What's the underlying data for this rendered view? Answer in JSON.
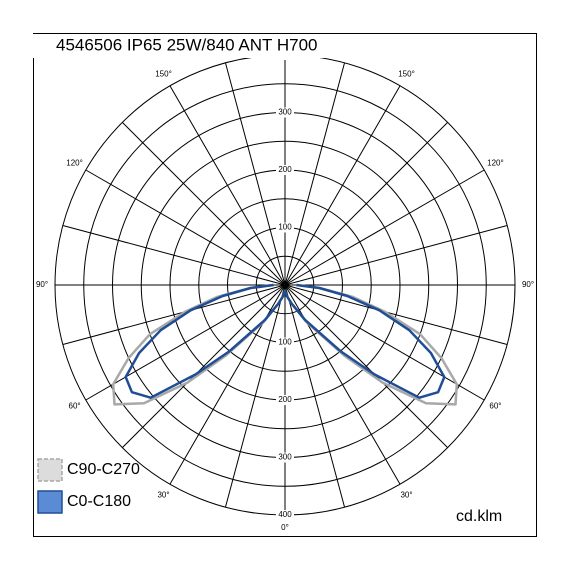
{
  "chart_data": {
    "type": "polar",
    "title": "4546506 IP65 25W/840 ANT H700",
    "unit": "cd.klm",
    "rlim": [
      0,
      400
    ],
    "rticks": [
      100,
      200,
      300,
      400
    ],
    "rgrid_step": 50,
    "angle_grid_step": 15,
    "angle_ticks": [
      {
        "value": 0,
        "label": "0°"
      },
      {
        "value": 30,
        "label": "30°"
      },
      {
        "value": 60,
        "label": "60°"
      },
      {
        "value": 90,
        "label": "90°"
      },
      {
        "value": 120,
        "label": "120°"
      },
      {
        "value": 150,
        "label": "150°"
      }
    ],
    "angles": [
      0,
      10,
      20,
      30,
      40,
      45,
      50,
      55,
      60,
      65,
      70,
      75,
      80,
      85,
      90
    ],
    "series": [
      {
        "name": "C90-C270",
        "color": "#a8a8a8",
        "fill": "#dcdcdc",
        "values": [
          10,
          20,
          35,
          75,
          160,
          240,
          320,
          362,
          345,
          300,
          250,
          180,
          120,
          60,
          20
        ]
      },
      {
        "name": "C0-C180",
        "color": "#1f4e96",
        "fill": "#5b8bd4",
        "values": [
          10,
          20,
          35,
          70,
          150,
          220,
          305,
          325,
          320,
          280,
          230,
          170,
          110,
          60,
          20
        ]
      }
    ]
  }
}
